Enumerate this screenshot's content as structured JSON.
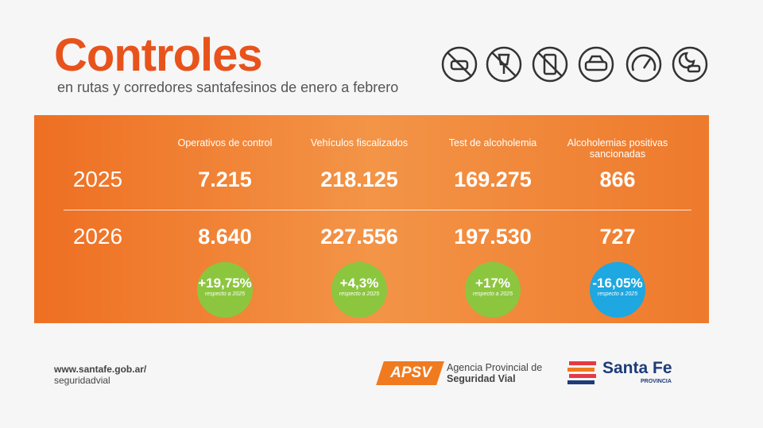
{
  "header": {
    "title": "Controles",
    "subtitle": "en rutas y corredores santafesinos de enero a febrero"
  },
  "table": {
    "columns": [
      "Operativos de control",
      "Vehículos fiscalizados",
      "Test de alcoholemia",
      "Alcoholemias positivas sancionadas"
    ],
    "rows": [
      {
        "year": "2025",
        "values": [
          "7.215",
          "218.125",
          "169.275",
          "866"
        ]
      },
      {
        "year": "2026",
        "values": [
          "8.640",
          "227.556",
          "197.530",
          "727"
        ]
      }
    ],
    "changes": [
      {
        "value": "+19,75%",
        "note": "respecto a 2025",
        "color": "#8cc63f"
      },
      {
        "value": "+4,3%",
        "note": "respecto a 2025",
        "color": "#8cc63f"
      },
      {
        "value": "+17%",
        "note": "respecto a 2025",
        "color": "#8cc63f"
      },
      {
        "value": "-16,05%",
        "note": "respecto a 2025",
        "color": "#1ea7e1"
      }
    ]
  },
  "footer": {
    "url": [
      "www.santafe.gob.ar/",
      "seguridadvial"
    ],
    "apsv": {
      "logo": "APSV",
      "line1": "Agencia Provincial de",
      "line2": "Seguridad Vial"
    },
    "province": {
      "name": "Santa Fe",
      "label": "PROVINCIA"
    }
  }
}
